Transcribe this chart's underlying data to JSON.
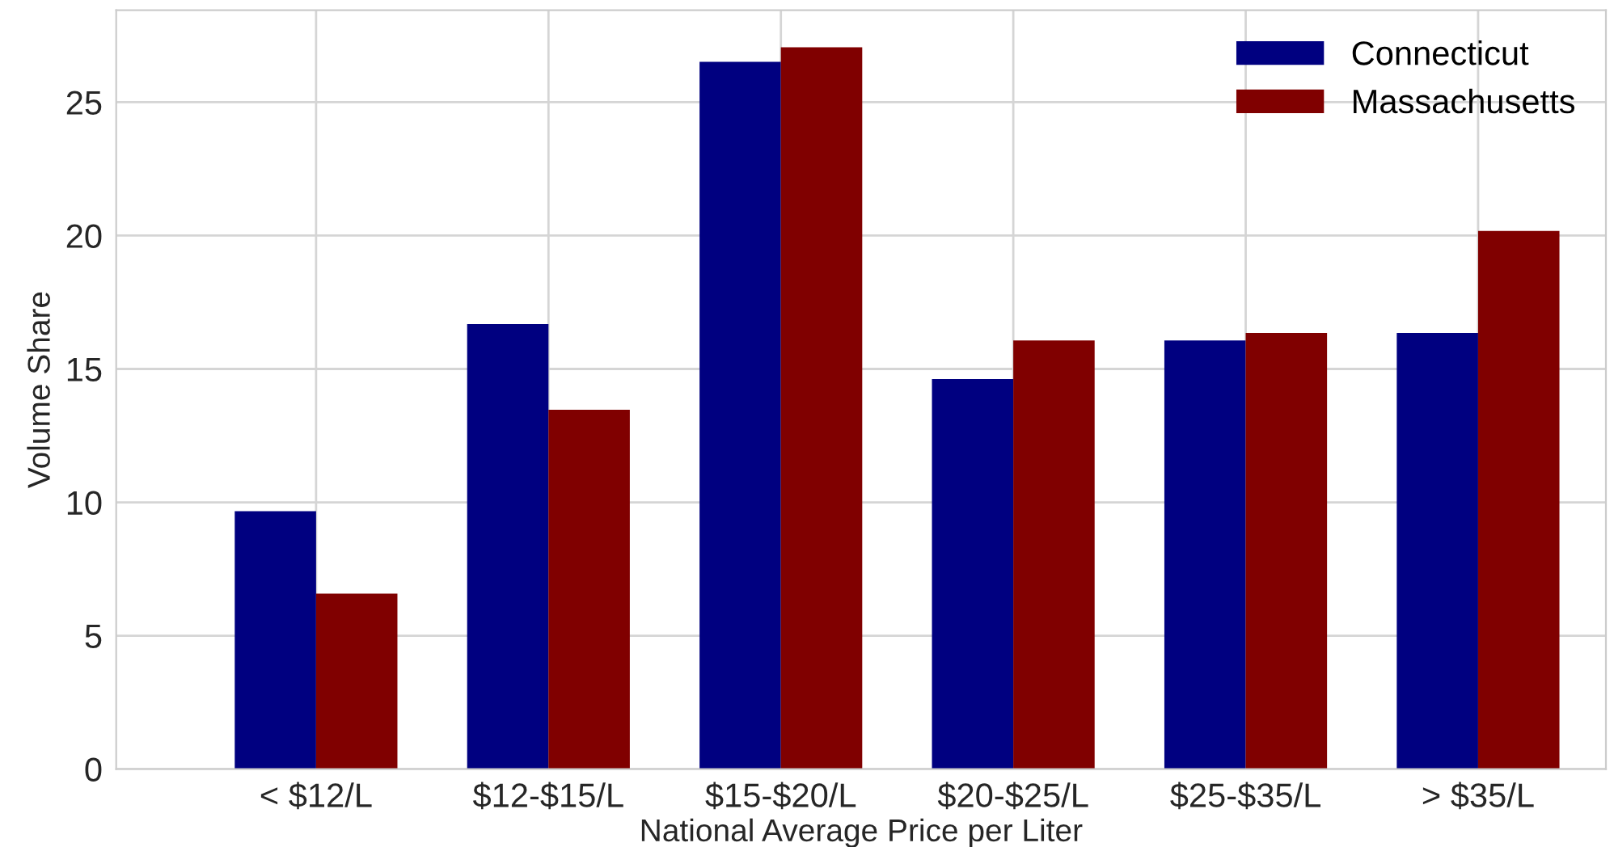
{
  "chart_data": {
    "type": "bar",
    "xlabel": "National Average Price per Liter",
    "ylabel": "Volume Share",
    "categories": [
      "< $12/L",
      "$12-$15/L",
      "$15-$20/L",
      "$20-$25/L",
      "$25-$35/L",
      "> $35/L"
    ],
    "series": [
      {
        "name": "Connecticut",
        "color": "#000080",
        "values": [
          9.67,
          16.68,
          26.51,
          14.62,
          16.07,
          16.35
        ]
      },
      {
        "name": "Massachusetts",
        "color": "#800000",
        "values": [
          6.58,
          13.47,
          27.06,
          16.07,
          16.35,
          20.17
        ]
      }
    ],
    "ylim": [
      0,
      28.45
    ],
    "yticks": [
      0,
      5,
      10,
      15,
      20,
      25
    ],
    "grid": true,
    "legend": "top right"
  }
}
